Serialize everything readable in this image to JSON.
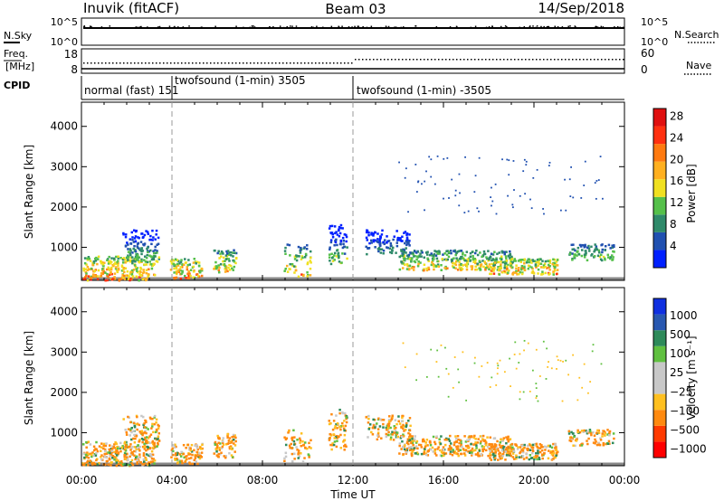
{
  "header": {
    "station": "Inuvik (fitACF)",
    "beam": "Beam 03",
    "date": "14/Sep/2018"
  },
  "top_panels": {
    "nsky": {
      "label": "N.Sky",
      "right_label": "N.Search",
      "left_ticks": [
        "10^5",
        "10^0"
      ],
      "right_ticks": [
        "10^5",
        "10^0"
      ]
    },
    "freq": {
      "label_line1": "Freq.",
      "label_line2": "[MHz]",
      "right_label": "Nave",
      "left_ticks": [
        "18",
        "8"
      ],
      "right_ticks": [
        "60",
        "0"
      ]
    },
    "cpid": {
      "label": "CPID",
      "modes": [
        {
          "text": "normal (fast) 151",
          "start_hour": 0
        },
        {
          "text": "twofsound (1-min) 3505",
          "start_hour": 4
        },
        {
          "text": "twofsound (1-min) -3505",
          "start_hour": 12
        }
      ]
    }
  },
  "colors": {
    "power_scale": [
      "#0020ff",
      "#2050b0",
      "#2f8a6a",
      "#55c04a",
      "#f0e020",
      "#ffb020",
      "#ff7a10",
      "#ff3010",
      "#e01010"
    ],
    "velocity_scale": [
      "#ff0000",
      "#ff3a00",
      "#ff8a10",
      "#ffc020",
      "#c8c8c8",
      "#c8c8c8",
      "#60c040",
      "#2e8a5a",
      "#2858b0",
      "#1030e0"
    ]
  },
  "chart_data": [
    {
      "type": "heatmap",
      "name": "power",
      "xlabel": "Time UT",
      "ylabel": "Slant Range [km]",
      "x_ticks": [
        "00:00",
        "04:00",
        "08:00",
        "12:00",
        "16:00",
        "20:00",
        "00:00"
      ],
      "x_range_hours": [
        0,
        24
      ],
      "y_ticks": [
        1000,
        2000,
        3000,
        4000
      ],
      "y_range_km": [
        180,
        4600
      ],
      "colorbar_label": "Power [dB]",
      "colorbar_ticks": [
        "4",
        "8",
        "12",
        "16",
        "20",
        "24",
        "28"
      ],
      "colorbar_range": [
        0,
        30
      ],
      "mode_change_hours": [
        4,
        12
      ]
    },
    {
      "type": "heatmap",
      "name": "velocity",
      "xlabel": "Time UT",
      "ylabel": "Slant Range [km]",
      "x_ticks": [
        "00:00",
        "04:00",
        "08:00",
        "12:00",
        "16:00",
        "20:00",
        "00:00"
      ],
      "x_range_hours": [
        0,
        24
      ],
      "y_ticks": [
        1000,
        2000,
        3000,
        4000
      ],
      "y_range_km": [
        180,
        4600
      ],
      "colorbar_label": "Velocity [m s⁻¹]",
      "colorbar_ticks": [
        "1000",
        "500",
        "100",
        "25",
        "−25",
        "−100",
        "−500",
        "−1000"
      ],
      "mode_change_hours": [
        4,
        12
      ]
    }
  ]
}
